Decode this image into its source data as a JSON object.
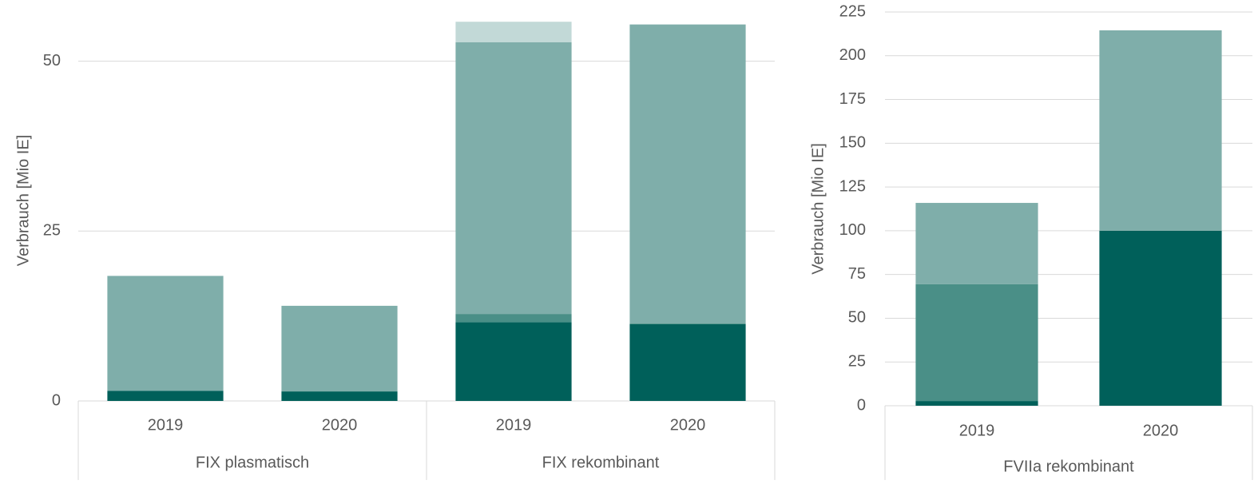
{
  "chart_data": [
    {
      "type": "bar",
      "stacked": true,
      "y_label": "Verbrauch [Mio IE]",
      "groups": [
        {
          "label": "FIX plasmatisch",
          "categories": [
            "2019",
            "2020"
          ]
        },
        {
          "label": "FIX rekombinant",
          "categories": [
            "2019",
            "2020"
          ]
        }
      ],
      "series": [
        {
          "color": "#00605a",
          "values": [
            1.5,
            1.4,
            11.6,
            11.3
          ]
        },
        {
          "color": "#4a8f87",
          "values": [
            0,
            0,
            1.2,
            0.1
          ]
        },
        {
          "color": "#7faeaa",
          "values": [
            16.9,
            12.6,
            40.0,
            44.0
          ]
        },
        {
          "color": "#c2d9d7",
          "values": [
            0,
            0,
            3.0,
            0
          ]
        }
      ],
      "ylim": [
        0,
        59
      ],
      "yticks": [
        0,
        25,
        50
      ],
      "grid": true
    },
    {
      "type": "bar",
      "stacked": true,
      "y_label": "Verbrauch [Mio IE]",
      "groups": [
        {
          "label": "FVIIa rekombinant",
          "categories": [
            "2019",
            "2020"
          ]
        }
      ],
      "series": [
        {
          "color": "#00605a",
          "values": [
            2.7,
            100
          ]
        },
        {
          "color": "#4a8f87",
          "values": [
            66.7,
            0
          ]
        },
        {
          "color": "#7faeaa",
          "values": [
            46.5,
            114.5
          ]
        }
      ],
      "ylim": [
        0,
        225
      ],
      "yticks": [
        0,
        25,
        50,
        75,
        100,
        125,
        150,
        175,
        200,
        225
      ],
      "grid": true
    }
  ]
}
